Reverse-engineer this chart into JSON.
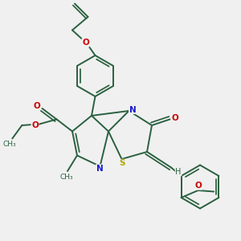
{
  "background_color": "#f0f0f0",
  "bond_color": "#2a6040",
  "n_color": "#1a1acc",
  "o_color": "#cc0000",
  "s_color": "#aaaa00",
  "line_width": 1.4,
  "fig_width": 3.0,
  "fig_height": 3.0,
  "dpi": 100,
  "xlim": [
    0,
    10
  ],
  "ylim": [
    0,
    10
  ]
}
